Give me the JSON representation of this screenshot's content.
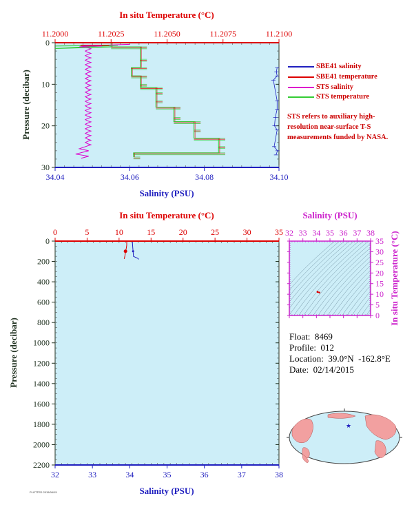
{
  "colors": {
    "plot_bg": "#cdeef8",
    "salinity": "#1f1fbf",
    "temperature": "#dd0000",
    "sts_salinity": "#dd00cc",
    "sts_temperature": "#33cc33",
    "pressure_axis": "#223322",
    "salinity_axis_text": "#1f1fbf",
    "temp_axis_text": "#dd0000",
    "ts_axis": "#cc22cc"
  },
  "chart_data": [
    {
      "id": "near-surface",
      "type": "line",
      "top_xlabel": "In situ Temperature (°C)",
      "top_xlim": [
        11.2,
        11.21
      ],
      "top_ticks": [
        "11.2000",
        "11.2025",
        "11.2050",
        "11.2075",
        "11.2100"
      ],
      "bottom_xlabel": "Salinity (PSU)",
      "bottom_xlim": [
        34.04,
        34.1
      ],
      "bottom_ticks": [
        "34.04",
        "34.06",
        "34.08",
        "34.10"
      ],
      "ylabel": "Pressure (decibar)",
      "ylim": [
        0,
        30
      ],
      "y_ticks": [
        "0",
        "10",
        "20",
        "30"
      ],
      "legend": [
        {
          "label": "SBE41 salinity",
          "color": "#1f1fbf"
        },
        {
          "label": "SBE41 temperature",
          "color": "#dd0000"
        },
        {
          "label": "STS salinity",
          "color": "#dd00cc"
        },
        {
          "label": "STS temperature",
          "color": "#33cc33"
        }
      ],
      "note": "STS refers to auxiliary high-resolution near-surface T-S measurements funded by NASA.",
      "series": [
        {
          "name": "STS temperature",
          "axis": "temperature",
          "steps": [
            [
              0.0,
              11.2025
            ],
            [
              1.0,
              11.2038
            ],
            [
              4.0,
              11.2038
            ],
            [
              6.0,
              11.2034
            ],
            [
              8.0,
              11.2038
            ],
            [
              10.0,
              11.2038
            ],
            [
              10.8,
              11.2045
            ],
            [
              12.0,
              11.2045
            ],
            [
              14.0,
              11.2045
            ],
            [
              15.5,
              11.2053
            ],
            [
              18.0,
              11.2053
            ],
            [
              19.0,
              11.2062
            ],
            [
              21.0,
              11.2062
            ],
            [
              23.0,
              11.2073
            ],
            [
              25.0,
              11.2073
            ],
            [
              26.5,
              11.2035
            ],
            [
              27.5,
              11.2035
            ]
          ]
        },
        {
          "name": "SBE41 salinity",
          "axis": "salinity",
          "points": [
            [
              6.0,
              34.0995
            ],
            [
              7.0,
              34.0993
            ],
            [
              8.0,
              34.0995
            ],
            [
              9.0,
              34.0985
            ],
            [
              14.0,
              34.0995
            ],
            [
              16.0,
              34.0995
            ],
            [
              18.0,
              34.099
            ],
            [
              20.0,
              34.0988
            ],
            [
              21.0,
              34.0995
            ],
            [
              25.0,
              34.0987
            ],
            [
              26.0,
              34.0996
            ],
            [
              27.0,
              34.0992
            ]
          ]
        }
      ]
    },
    {
      "id": "full-profile",
      "type": "line",
      "top_xlabel": "In situ Temperature (°C)",
      "top_xlim": [
        0,
        35
      ],
      "top_ticks": [
        "0",
        "5",
        "10",
        "15",
        "20",
        "25",
        "30",
        "35"
      ],
      "bottom_xlabel": "Salinity (PSU)",
      "bottom_xlim": [
        32,
        38
      ],
      "bottom_ticks": [
        "32",
        "33",
        "34",
        "35",
        "36",
        "37",
        "38"
      ],
      "ylabel": "Pressure (decibar)",
      "ylim": [
        0,
        2200
      ],
      "y_ticks": [
        "0",
        "200",
        "400",
        "600",
        "800",
        "1000",
        "1200",
        "1400",
        "1600",
        "1800",
        "2000",
        "2200"
      ],
      "series": [
        {
          "name": "Salinity",
          "axis": "salinity",
          "points": [
            [
              0,
              34.07
            ],
            [
              60,
              34.08
            ],
            [
              100,
              34.09
            ],
            [
              150,
              34.1
            ],
            [
              170,
              34.22
            ],
            [
              180,
              34.24
            ]
          ]
        },
        {
          "name": "Temperature",
          "axis": "temperature",
          "points": [
            [
              0,
              11.2
            ],
            [
              40,
              11.2
            ],
            [
              80,
              11.1
            ],
            [
              110,
              11.0
            ],
            [
              150,
              10.9
            ],
            [
              175,
              10.8
            ]
          ]
        }
      ]
    },
    {
      "id": "ts-diagram",
      "type": "scatter",
      "top_xlabel": "Salinity (PSU)",
      "xlim": [
        32,
        38
      ],
      "x_ticks": [
        "32",
        "33",
        "34",
        "35",
        "36",
        "37",
        "38"
      ],
      "ylabel": "In situ Temperature (°C)",
      "ylim": [
        0,
        35
      ],
      "y_ticks": [
        "0",
        "5",
        "10",
        "15",
        "20",
        "25",
        "30",
        "35"
      ],
      "points": [
        [
          34.08,
          11.2
        ],
        [
          34.1,
          11.05
        ],
        [
          34.22,
          10.8
        ]
      ]
    }
  ],
  "float_info": {
    "float": "Float:  8469",
    "profile": "Profile:  012",
    "location": "Location:  39.0°N  -162.8°E",
    "date": "Date:  02/14/2015"
  },
  "map": {
    "marker_icon": "star-icon",
    "lat": 39.0,
    "lon": -162.8
  },
  "credit": "PLOTTED 2015/04/15"
}
